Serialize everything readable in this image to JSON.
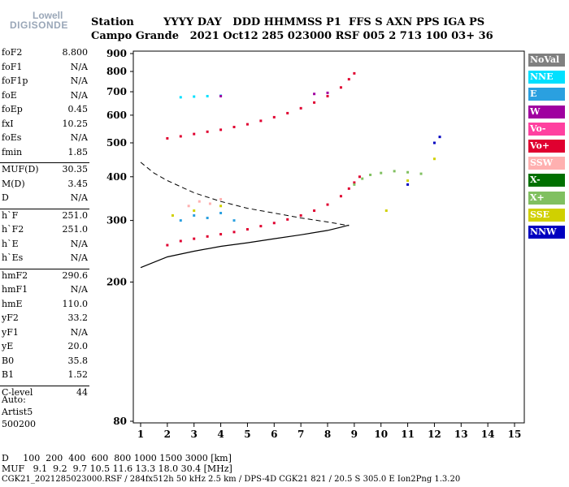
{
  "logo": {
    "brand": "Lowell",
    "product": "DIGISONDE"
  },
  "header": {
    "labels": "Station        YYYY DAY   DDD HHMMSS P1  FFS S AXN PPS IGA PS",
    "values": "Campo Grande   2021 Oct12 285 023000 RSF 005 2 713 100 03+ 36"
  },
  "params": [
    {
      "name": "foF2",
      "value": "8.800"
    },
    {
      "name": "foF1",
      "value": "N/A"
    },
    {
      "name": "foF1p",
      "value": "N/A"
    },
    {
      "name": "foE",
      "value": "N/A"
    },
    {
      "name": "foEp",
      "value": "0.45"
    },
    {
      "name": "fxI",
      "value": "10.25"
    },
    {
      "name": "foEs",
      "value": "N/A"
    },
    {
      "name": "fmin",
      "value": "1.85"
    },
    {
      "name": "MUF(D)",
      "value": "30.35"
    },
    {
      "name": "M(D)",
      "value": "3.45"
    },
    {
      "name": "D",
      "value": "N/A"
    },
    {
      "name": "h`F",
      "value": "251.0"
    },
    {
      "name": "h`F2",
      "value": "251.0"
    },
    {
      "name": "h`E",
      "value": "N/A"
    },
    {
      "name": "h`Es",
      "value": "N/A"
    },
    {
      "name": "hmF2",
      "value": "290.6"
    },
    {
      "name": "hmF1",
      "value": "N/A"
    },
    {
      "name": "hmE",
      "value": "110.0"
    },
    {
      "name": "yF2",
      "value": "33.2"
    },
    {
      "name": "yF1",
      "value": "N/A"
    },
    {
      "name": "yE",
      "value": "20.0"
    },
    {
      "name": "B0",
      "value": "35.8"
    },
    {
      "name": "B1",
      "value": "1.52"
    },
    {
      "name": "C-level",
      "value": "44"
    }
  ],
  "auto": {
    "line1": "Auto:",
    "line2": "Artist5",
    "line3": "500200"
  },
  "legend": [
    {
      "label": "NoVal",
      "color": "#808080"
    },
    {
      "label": "NNE",
      "color": "#00e0ff"
    },
    {
      "label": "E",
      "color": "#2aa0e0"
    },
    {
      "label": "W",
      "color": "#a000a0"
    },
    {
      "label": "Vo-",
      "color": "#ff40a0"
    },
    {
      "label": "Vo+",
      "color": "#e00030"
    },
    {
      "label": "SSW",
      "color": "#ffb0b0"
    },
    {
      "label": "X-",
      "color": "#007000"
    },
    {
      "label": "X+",
      "color": "#80c060"
    },
    {
      "label": "SSE",
      "color": "#d0d000"
    },
    {
      "label": "NNW",
      "color": "#0000c0"
    }
  ],
  "footer": {
    "d_row": "D     100  200  400  600  800 1000 1500 3000 [km]",
    "muf_row": "MUF   9.1  9.2  9.7 10.5 11.6 13.3 18.0 30.4 [MHz]",
    "info": "CGK21_2021285023000.RSF / 284fx512h 50 kHz 2.5 km / DPS-4D CGK21 821 / 20.5 S 305.0 E Ion2Png 1.3.20"
  },
  "chart_data": {
    "type": "scatter",
    "title": "",
    "xlabel": "",
    "ylabel": "",
    "xlim": [
      1,
      15
    ],
    "ylim": [
      80,
      900
    ],
    "yscale": "log",
    "x_ticks": [
      1,
      2,
      3,
      4,
      5,
      6,
      7,
      8,
      9,
      10,
      11,
      12,
      13,
      14,
      15
    ],
    "y_ticks": [
      80,
      200,
      300,
      400,
      500,
      600,
      700,
      800,
      900
    ],
    "series": [
      {
        "color": "#e00030",
        "points": [
          [
            2.0,
            255
          ],
          [
            2.5,
            262
          ],
          [
            3.0,
            266
          ],
          [
            3.5,
            270
          ],
          [
            4.0,
            274
          ],
          [
            4.5,
            278
          ],
          [
            5.0,
            283
          ],
          [
            5.5,
            289
          ],
          [
            6.0,
            295
          ],
          [
            6.5,
            302
          ],
          [
            7.0,
            310
          ],
          [
            7.5,
            320
          ],
          [
            8.0,
            333
          ],
          [
            8.5,
            352
          ],
          [
            8.8,
            370
          ],
          [
            9.0,
            385
          ],
          [
            9.2,
            400
          ]
        ]
      },
      {
        "color": "#e00030",
        "points": [
          [
            2.0,
            515
          ],
          [
            2.5,
            522
          ],
          [
            3.0,
            530
          ],
          [
            3.5,
            538
          ],
          [
            4.0,
            545
          ],
          [
            4.5,
            555
          ],
          [
            5.0,
            565
          ],
          [
            5.5,
            578
          ],
          [
            6.0,
            592
          ],
          [
            6.5,
            608
          ],
          [
            7.0,
            628
          ],
          [
            7.5,
            652
          ],
          [
            8.0,
            680
          ],
          [
            8.5,
            720
          ],
          [
            8.8,
            760
          ],
          [
            9.0,
            790
          ]
        ]
      },
      {
        "color": "#80c060",
        "points": [
          [
            9.0,
            380
          ],
          [
            9.3,
            395
          ],
          [
            9.6,
            405
          ],
          [
            10.0,
            410
          ],
          [
            10.5,
            415
          ],
          [
            11.0,
            412
          ],
          [
            11.5,
            408
          ]
        ]
      },
      {
        "color": "#2aa0e0",
        "points": [
          [
            2.5,
            300
          ],
          [
            3.0,
            310
          ],
          [
            3.5,
            305
          ],
          [
            4.0,
            315
          ],
          [
            4.5,
            300
          ]
        ]
      },
      {
        "color": "#ffb0b0",
        "points": [
          [
            2.8,
            330
          ],
          [
            3.2,
            340
          ],
          [
            3.6,
            335
          ],
          [
            4.0,
            345
          ]
        ]
      },
      {
        "color": "#d0d000",
        "points": [
          [
            2.2,
            310
          ],
          [
            3.0,
            320
          ],
          [
            4.0,
            330
          ],
          [
            10.2,
            320
          ],
          [
            11.0,
            390
          ],
          [
            12.0,
            450
          ]
        ]
      },
      {
        "color": "#0000c0",
        "points": [
          [
            11.0,
            380
          ],
          [
            12.0,
            500
          ],
          [
            12.2,
            520
          ]
        ]
      },
      {
        "color": "#00e0ff",
        "points": [
          [
            2.5,
            675
          ],
          [
            3.0,
            678
          ],
          [
            3.5,
            680
          ],
          [
            4.0,
            682
          ]
        ]
      },
      {
        "color": "#a000a0",
        "points": [
          [
            4.0,
            680
          ],
          [
            7.5,
            690
          ],
          [
            8.0,
            695
          ]
        ]
      }
    ],
    "profile_dashed": [
      [
        1.0,
        440
      ],
      [
        1.5,
        410
      ],
      [
        2.0,
        390
      ],
      [
        3.0,
        360
      ],
      [
        4.0,
        340
      ],
      [
        5.0,
        325
      ],
      [
        6.0,
        315
      ],
      [
        7.0,
        305
      ],
      [
        8.0,
        297
      ],
      [
        8.8,
        290
      ]
    ],
    "profile_solid": [
      [
        1.0,
        220
      ],
      [
        2.0,
        236
      ],
      [
        3.0,
        245
      ],
      [
        4.0,
        253
      ],
      [
        5.0,
        259
      ],
      [
        6.0,
        266
      ],
      [
        7.0,
        273
      ],
      [
        8.0,
        281
      ],
      [
        8.5,
        287
      ],
      [
        8.8,
        291
      ]
    ]
  }
}
